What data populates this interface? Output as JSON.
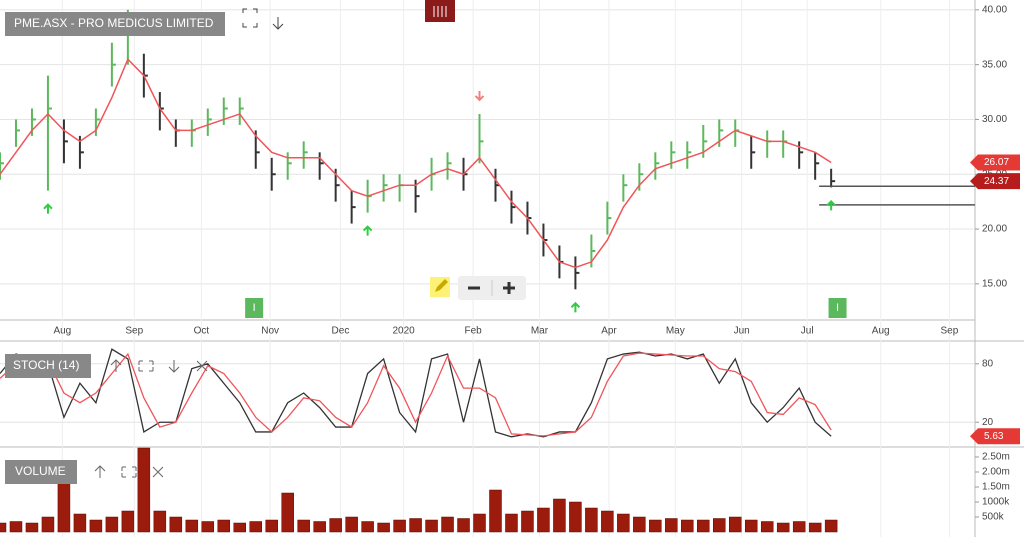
{
  "chart_data": [
    {
      "type": "hlc",
      "title": "PME.ASX - PRO MEDICUS LIMITED",
      "x": [
        0,
        1,
        2,
        3,
        4,
        5,
        6,
        7,
        8,
        9,
        10,
        11,
        12,
        13,
        14,
        15,
        16,
        17,
        18,
        19,
        20,
        21,
        22,
        23,
        24,
        25,
        26,
        27,
        28,
        29,
        30,
        31,
        32,
        33,
        34,
        35,
        36,
        37,
        38,
        39,
        40,
        41,
        42,
        43,
        44,
        45,
        46,
        47,
        48,
        49,
        50,
        51,
        52
      ],
      "high": [
        27,
        30,
        31,
        34,
        30,
        28.5,
        31,
        37,
        40,
        36,
        32.5,
        30,
        30,
        31,
        32,
        32,
        29,
        26.5,
        27,
        28,
        27,
        25.5,
        23.5,
        24.5,
        25,
        25,
        24.5,
        26.5,
        27,
        26.5,
        30.5,
        25.5,
        23.5,
        22.5,
        20.5,
        18.5,
        17.5,
        19.5,
        22.5,
        25,
        26,
        27,
        28,
        28,
        29.5,
        30,
        30,
        28.5,
        29,
        29,
        28,
        27,
        25.5
      ],
      "low": [
        24.5,
        27.5,
        28.5,
        23.5,
        26,
        25.5,
        28.5,
        33,
        35,
        32,
        29,
        27.5,
        27.5,
        28.5,
        29.5,
        29.5,
        25.5,
        23.5,
        24.5,
        25.5,
        24.5,
        22.5,
        20.5,
        21.5,
        22.5,
        22.5,
        21.5,
        23.5,
        24.5,
        23.5,
        26,
        22.5,
        20.5,
        19.5,
        17.5,
        15.5,
        14.5,
        16.5,
        19.5,
        22.5,
        23.5,
        24.5,
        25.5,
        25.5,
        26.5,
        27.5,
        27.5,
        25.5,
        26.5,
        26.5,
        25.5,
        24.5,
        23.8
      ],
      "close": [
        26,
        29,
        30,
        31,
        28,
        27,
        30,
        35,
        38,
        34,
        31,
        29,
        29,
        30,
        31,
        31,
        27,
        25,
        26,
        27,
        26,
        24,
        22,
        23,
        24,
        24,
        23,
        25,
        26,
        25,
        28,
        24,
        22,
        21,
        19,
        17,
        16,
        18,
        21,
        24,
        25,
        26,
        27,
        27,
        28,
        29,
        29,
        27,
        28,
        28,
        27,
        26,
        24.37
      ],
      "ma": {
        "color": "#f0555a",
        "values": [
          25,
          27,
          29,
          30.5,
          29,
          28,
          29,
          32,
          35.5,
          34,
          31,
          29,
          29,
          29.5,
          30,
          30.5,
          28.5,
          27,
          26.5,
          26.5,
          26.5,
          25,
          23.5,
          23,
          23.5,
          24,
          24,
          25,
          25.5,
          25,
          26.5,
          24.5,
          22.5,
          21,
          19,
          17,
          16.5,
          17,
          19,
          22,
          24,
          25.5,
          26,
          26.5,
          27,
          28,
          29,
          28.5,
          28,
          28,
          27.5,
          27,
          26.07
        ]
      },
      "up_color": "#5cb85c",
      "down_color": "#333333",
      "xlim": [
        0,
        61
      ],
      "ylim": [
        11.7,
        40.9
      ],
      "xticks": [
        {
          "value": 3.9,
          "label": "Aug"
        },
        {
          "value": 8.4,
          "label": "Sep"
        },
        {
          "value": 12.6,
          "label": "Oct"
        },
        {
          "value": 16.9,
          "label": "Nov"
        },
        {
          "value": 21.3,
          "label": "Dec"
        },
        {
          "value": 25.25,
          "label": "2020"
        },
        {
          "value": 29.6,
          "label": "Feb"
        },
        {
          "value": 33.75,
          "label": "Mar"
        },
        {
          "value": 38.1,
          "label": "Apr"
        },
        {
          "value": 42.25,
          "label": "May"
        },
        {
          "value": 46.4,
          "label": "Jun"
        },
        {
          "value": 50.5,
          "label": "Jul"
        },
        {
          "value": 55.1,
          "label": "Aug"
        },
        {
          "value": 59.4,
          "label": "Sep"
        }
      ],
      "yticks": [
        {
          "value": 15,
          "label": "15.00"
        },
        {
          "value": 20,
          "label": "20.00"
        },
        {
          "value": 25,
          "label": "25.00"
        },
        {
          "value": 30,
          "label": "30.00"
        },
        {
          "value": 35,
          "label": "35.00"
        },
        {
          "value": 40,
          "label": "40.00"
        }
      ],
      "hlines": [
        23.9,
        22.2
      ],
      "signals": [
        {
          "index": 3,
          "direction": "up"
        },
        {
          "index": 23,
          "direction": "up"
        },
        {
          "index": 30,
          "direction": "down"
        },
        {
          "index": 36,
          "direction": "up"
        },
        {
          "index": 52,
          "direction": "up"
        }
      ],
      "markers": [
        {
          "x": 15.9,
          "label": "I"
        },
        {
          "x": 52.4,
          "label": "I"
        }
      ],
      "grid": true
    },
    {
      "type": "line",
      "title": "STOCH (14)",
      "x": [
        0,
        1,
        2,
        3,
        4,
        5,
        6,
        7,
        8,
        9,
        10,
        11,
        12,
        13,
        14,
        15,
        16,
        17,
        18,
        19,
        20,
        21,
        22,
        23,
        24,
        25,
        26,
        27,
        28,
        29,
        30,
        31,
        32,
        33,
        34,
        35,
        36,
        37,
        38,
        39,
        40,
        41,
        42,
        43,
        44,
        45,
        46,
        47,
        48,
        49,
        50,
        51,
        52
      ],
      "series": [
        {
          "color": "#333333",
          "values": [
            70,
            90,
            85,
            80,
            25,
            60,
            40,
            95,
            85,
            10,
            20,
            20,
            75,
            80,
            60,
            40,
            10,
            10,
            40,
            50,
            35,
            15,
            15,
            70,
            85,
            30,
            10,
            85,
            90,
            20,
            85,
            10,
            5,
            8,
            5,
            10,
            10,
            40,
            85,
            90,
            92,
            88,
            90,
            85,
            90,
            60,
            85,
            40,
            20,
            35,
            55,
            20,
            5.63
          ]
        },
        {
          "color": "#f0555a",
          "values": [
            65,
            80,
            88,
            83,
            50,
            40,
            50,
            70,
            90,
            45,
            15,
            20,
            50,
            78,
            70,
            50,
            25,
            10,
            25,
            45,
            42,
            25,
            15,
            40,
            78,
            55,
            20,
            50,
            88,
            55,
            55,
            45,
            8,
            7,
            6,
            8,
            10,
            25,
            62,
            88,
            91,
            90,
            89,
            88,
            88,
            75,
            72,
            62,
            30,
            28,
            45,
            38,
            12
          ]
        }
      ],
      "xlim": [
        0,
        61
      ],
      "ylim": [
        -3.4,
        103.4
      ],
      "yticks": [
        20,
        80
      ],
      "grid": true
    },
    {
      "type": "bar",
      "title": "VOLUME",
      "color": "#9b1c0c",
      "x": [
        0,
        1,
        2,
        3,
        4,
        5,
        6,
        7,
        8,
        9,
        10,
        11,
        12,
        13,
        14,
        15,
        16,
        17,
        18,
        19,
        20,
        21,
        22,
        23,
        24,
        25,
        26,
        27,
        28,
        29,
        30,
        31,
        32,
        33,
        34,
        35,
        36,
        37,
        38,
        39,
        40,
        41,
        42,
        43,
        44,
        45,
        46,
        47,
        48,
        49,
        50,
        51,
        52
      ],
      "values": [
        300000,
        350000,
        300000,
        500000,
        1700000,
        600000,
        400000,
        500000,
        700000,
        2800000,
        700000,
        500000,
        400000,
        350000,
        400000,
        300000,
        350000,
        400000,
        1300000,
        400000,
        350000,
        450000,
        500000,
        350000,
        300000,
        400000,
        450000,
        400000,
        500000,
        450000,
        600000,
        1400000,
        600000,
        700000,
        800000,
        1100000,
        1000000,
        800000,
        700000,
        600000,
        500000,
        400000,
        450000,
        400000,
        400000,
        450000,
        500000,
        400000,
        350000,
        300000,
        350000,
        300000,
        400000
      ],
      "xlim": [
        0,
        61
      ],
      "ylim": [
        0,
        2800000
      ],
      "yticks": [
        {
          "value": 500000,
          "label": "500k"
        },
        {
          "value": 1000000,
          "label": "1000k"
        },
        {
          "value": 1500000,
          "label": "1.50m"
        },
        {
          "value": 2000000,
          "label": "2.00m"
        },
        {
          "value": 2500000,
          "label": "2.50m"
        }
      ]
    }
  ]
}
